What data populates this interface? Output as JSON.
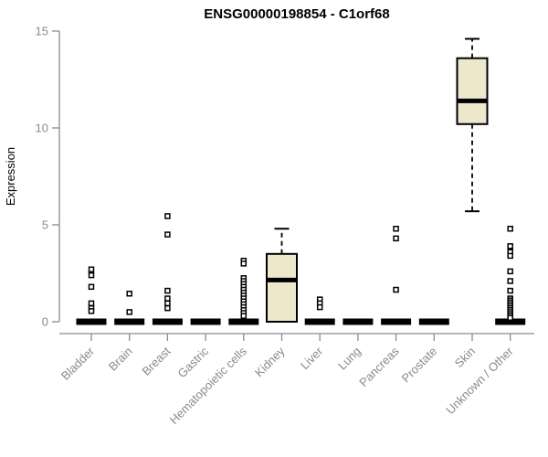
{
  "chart_data": {
    "type": "boxplot",
    "title": "ENSG00000198854 - C1orf68",
    "ylabel": "Expression",
    "xlabel": "",
    "ylim": [
      0,
      15
    ],
    "yticks": [
      0,
      5,
      10,
      15
    ],
    "grid": false,
    "legend": "none",
    "box_fill": "#EDE8CC",
    "box_border": "#000000",
    "axis_color": "#8A8A8A",
    "categories": [
      "Bladder",
      "Brain",
      "Breast",
      "Gastric",
      "Hematopoietic cells",
      "Kidney",
      "Liver",
      "Lung",
      "Pancreas",
      "Prostate",
      "Skin",
      "Unknown / Other"
    ],
    "series": [
      {
        "category": "Bladder",
        "q1": 0,
        "median": 0,
        "q3": 0,
        "whisker_low": 0,
        "whisker_high": 0,
        "outliers": [
          2.7,
          2.4,
          1.8,
          0.95,
          0.7,
          0.55
        ]
      },
      {
        "category": "Brain",
        "q1": 0,
        "median": 0,
        "q3": 0,
        "whisker_low": 0,
        "whisker_high": 0,
        "outliers": [
          1.45,
          0.5
        ]
      },
      {
        "category": "Breast",
        "q1": 0,
        "median": 0,
        "q3": 0,
        "whisker_low": 0,
        "whisker_high": 0,
        "outliers": [
          5.45,
          4.5,
          1.6,
          1.2,
          0.95,
          0.7
        ]
      },
      {
        "category": "Gastric",
        "q1": 0,
        "median": 0,
        "q3": 0,
        "whisker_low": 0,
        "whisker_high": 0,
        "outliers": []
      },
      {
        "category": "Hematopoietic cells",
        "q1": 0,
        "median": 0,
        "q3": 0,
        "whisker_low": 0,
        "whisker_high": 0,
        "outliers": [
          3.15,
          3.0,
          2.25,
          2.1,
          1.95,
          1.8,
          1.65,
          1.5,
          1.35,
          1.2,
          1.05,
          0.9,
          0.75,
          0.6,
          0.45,
          0.3
        ]
      },
      {
        "category": "Kidney",
        "q1": 0,
        "median": 2.15,
        "q3": 3.5,
        "whisker_low": 0,
        "whisker_high": 4.8,
        "outliers": []
      },
      {
        "category": "Liver",
        "q1": 0,
        "median": 0,
        "q3": 0,
        "whisker_low": 0,
        "whisker_high": 0,
        "outliers": [
          1.15,
          0.95,
          0.75
        ]
      },
      {
        "category": "Lung",
        "q1": 0,
        "median": 0,
        "q3": 0,
        "whisker_low": 0,
        "whisker_high": 0,
        "outliers": []
      },
      {
        "category": "Pancreas",
        "q1": 0,
        "median": 0,
        "q3": 0,
        "whisker_low": 0,
        "whisker_high": 0,
        "outliers": [
          4.8,
          4.3,
          1.65
        ]
      },
      {
        "category": "Prostate",
        "q1": 0,
        "median": 0,
        "q3": 0,
        "whisker_low": 0,
        "whisker_high": 0,
        "outliers": []
      },
      {
        "category": "Skin",
        "q1": 10.2,
        "median": 11.4,
        "q3": 13.6,
        "whisker_low": 5.7,
        "whisker_high": 14.6,
        "outliers": []
      },
      {
        "category": "Unknown / Other",
        "q1": 0,
        "median": 0,
        "q3": 0,
        "whisker_low": 0,
        "whisker_high": 0,
        "outliers": [
          4.8,
          3.9,
          3.6,
          3.4,
          2.6,
          2.1,
          1.6,
          1.2,
          1.1,
          1.0,
          0.9,
          0.8,
          0.7,
          0.6,
          0.5,
          0.4,
          0.3,
          0.2
        ]
      }
    ]
  }
}
